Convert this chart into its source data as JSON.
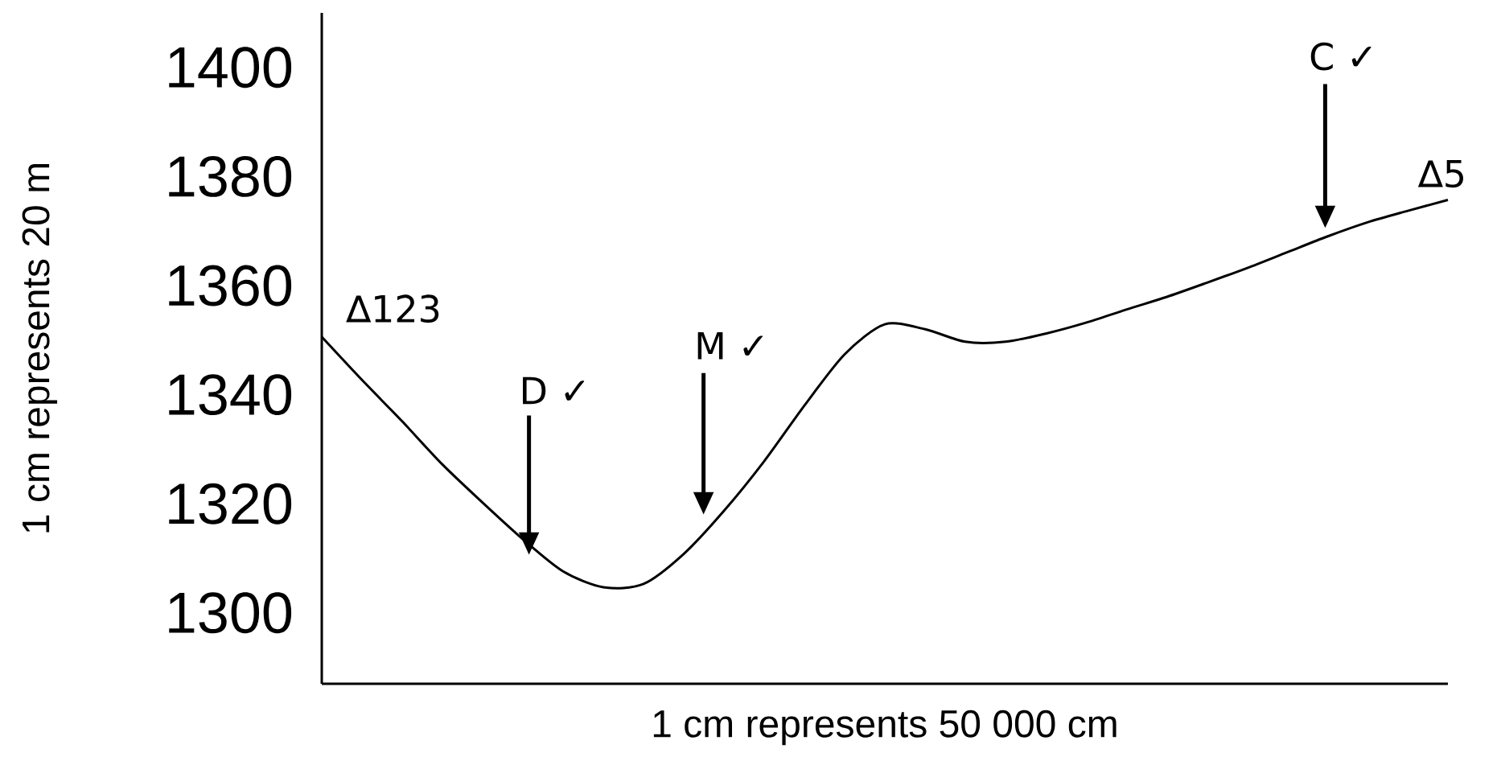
{
  "chart_data": {
    "type": "line",
    "xlabel": "1 cm represents 50 000 cm",
    "ylabel": "1 cm represents 20 m",
    "categories": [
      null,
      null,
      null,
      null,
      null,
      null,
      null,
      null,
      null,
      null,
      null,
      null,
      null,
      null,
      null,
      null,
      null,
      null,
      null,
      null,
      null,
      null,
      null,
      null,
      null,
      null,
      null,
      null,
      null
    ],
    "series": [
      {
        "color": "#000000",
        "values": [
          1350.6,
          1342.7,
          1335.1,
          1327.2,
          1320.2,
          1313.5,
          1307.6,
          1304.7,
          1305.3,
          1310.8,
          1318.7,
          1327.8,
          1338.0,
          1347.4,
          1352.9,
          1352.0,
          1349.7,
          1349.7,
          1351.2,
          1353.2,
          1355.6,
          1357.9,
          1360.5,
          1363.2,
          1366.1,
          1369.0,
          1371.6,
          1373.7,
          1375.7
        ]
      }
    ],
    "ylim": [
      1287,
      1410
    ],
    "yticks": [
      1300,
      1320,
      1340,
      1360,
      1380,
      1400
    ],
    "annotations": [
      "∆123",
      "D ✓",
      "M ✓",
      "C ✓",
      "∆5"
    ],
    "grid": false,
    "marker": "none",
    "line_style": "solid"
  }
}
